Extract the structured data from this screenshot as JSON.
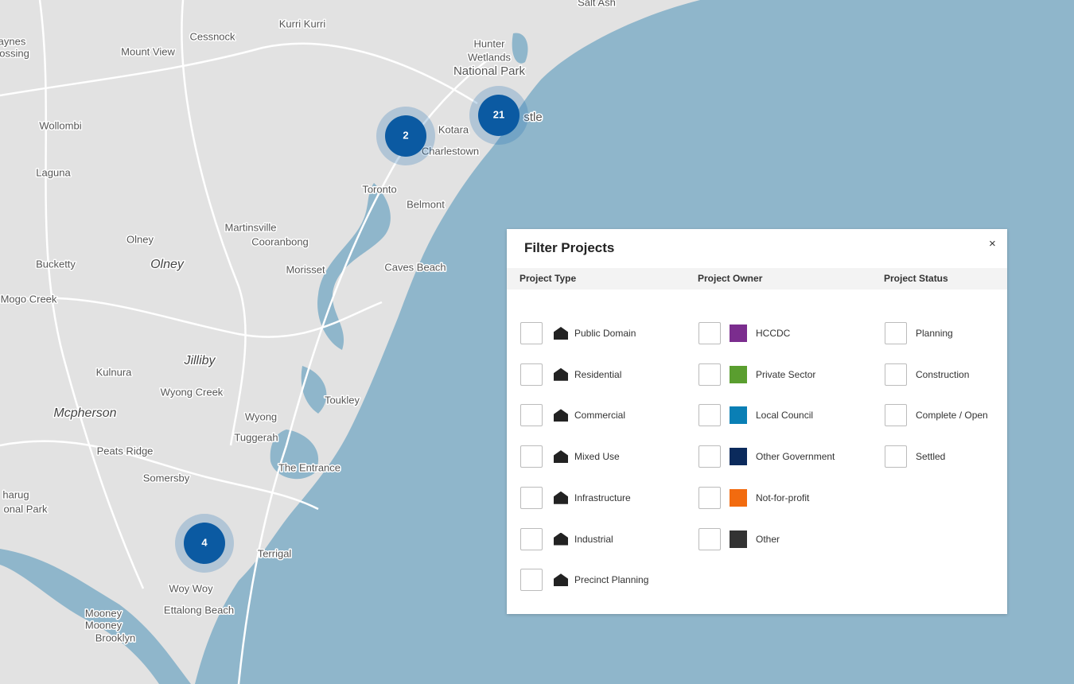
{
  "map": {
    "places": [
      "Salt Ash",
      "aynes",
      "ossing",
      "Cessnock",
      "Kurri Kurri",
      "Mount View",
      "Hunter",
      "Wetlands",
      "National Park",
      "stle",
      "Wollombi",
      "Kotara",
      "Charlestown",
      "Laguna",
      "Toronto",
      "Belmont",
      "Martinsville",
      "Olney",
      "Cooranbong",
      "Olney",
      "Bucketty",
      "Morisset",
      "Caves Beach",
      "Mogo Creek",
      "Jilliby",
      "Kulnura",
      "Wyong Creek",
      "Toukley",
      "Mcpherson",
      "Wyong",
      "Tuggerah",
      "Peats Ridge",
      "The Entrance",
      "Somersby",
      "harug",
      "onal Park",
      "Terrigal",
      "Woy Woy",
      "Ettalong Beach",
      "Mooney",
      "Mooney",
      "Brooklyn"
    ],
    "clusters": [
      "2",
      "21",
      "4"
    ]
  },
  "filter": {
    "title": "Filter Projects",
    "close": "×",
    "columns": [
      {
        "heading": "Project Type",
        "options": [
          "Public Domain",
          "Residential",
          "Commercial",
          "Mixed Use",
          "Infrastructure",
          "Industrial",
          "Precinct Planning"
        ]
      },
      {
        "heading": "Project Owner",
        "options": [
          "HCCDC",
          "Private Sector",
          "Local Council",
          "Other Government",
          "Not-for-profit",
          "Other"
        ]
      },
      {
        "heading": "Project Status",
        "options": [
          "Planning",
          "Construction",
          "Complete / Open",
          "Settled"
        ]
      }
    ]
  }
}
